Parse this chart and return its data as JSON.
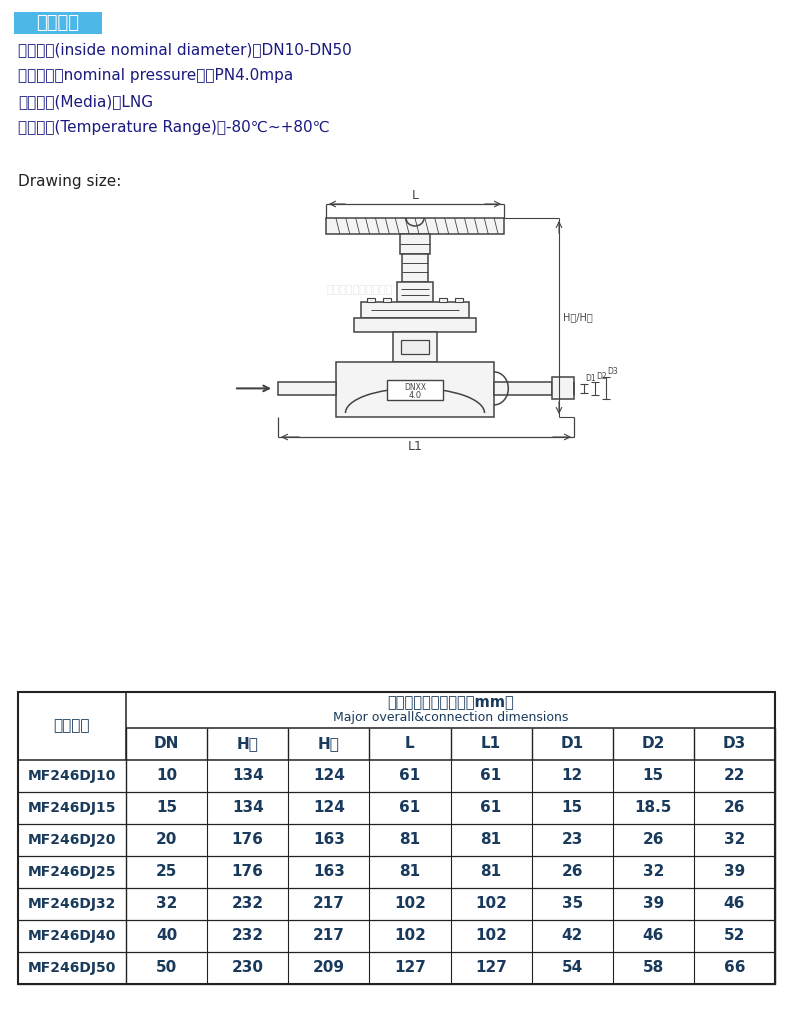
{
  "title_text": "规格参数",
  "title_bg": "#4db8e8",
  "specs": [
    "公称通径(inside nominal diameter)：DN10-DN50",
    "公称压力（nominal pressure）：PN4.0mpa",
    "适用介质(Media)：LNG",
    "适用温度(Temperature Range)：-80℃~+80℃"
  ],
  "drawing_label": "Drawing size:",
  "table_header1": "产品代码",
  "table_header2_cn": "主要外形和连接尺寸（mm）",
  "table_header2_en": "Major overall&connection dimensions",
  "col_headers": [
    "DN",
    "H开",
    "H关",
    "L",
    "L1",
    "D1",
    "D2",
    "D3"
  ],
  "rows": [
    [
      "MF246DJ10",
      "10",
      "134",
      "124",
      "61",
      "61",
      "12",
      "15",
      "22"
    ],
    [
      "MF246DJ15",
      "15",
      "134",
      "124",
      "61",
      "61",
      "15",
      "18.5",
      "26"
    ],
    [
      "MF246DJ20",
      "20",
      "176",
      "163",
      "81",
      "81",
      "23",
      "26",
      "32"
    ],
    [
      "MF246DJ25",
      "25",
      "176",
      "163",
      "81",
      "81",
      "26",
      "32",
      "39"
    ],
    [
      "MF246DJ32",
      "32",
      "232",
      "217",
      "102",
      "102",
      "35",
      "39",
      "46"
    ],
    [
      "MF246DJ40",
      "40",
      "232",
      "217",
      "102",
      "102",
      "42",
      "46",
      "52"
    ],
    [
      "MF246DJ50",
      "50",
      "230",
      "209",
      "127",
      "127",
      "54",
      "58",
      "66"
    ]
  ],
  "watermark": "四川五升阀门有限公司",
  "text_color": "#1a1a80",
  "table_text_color": "#1a3a5c",
  "bg_color": "#ffffff",
  "border_color": "#333333",
  "drawing_line_color": "#444444"
}
